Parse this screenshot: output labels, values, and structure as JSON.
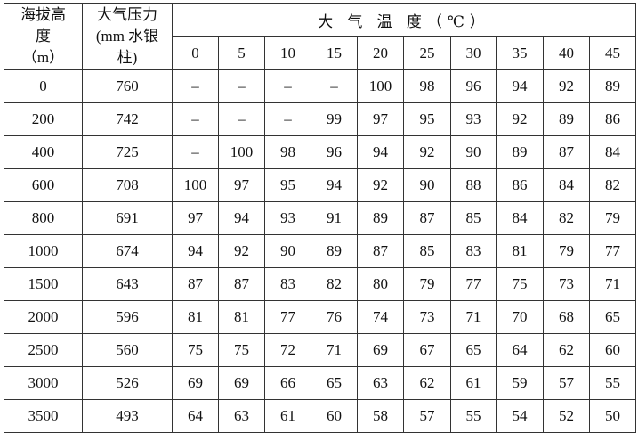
{
  "table": {
    "header": {
      "altitude": [
        "海拔高",
        "度",
        "（m）"
      ],
      "pressure": [
        "大气压力",
        "(mm 水银",
        "柱)"
      ],
      "temperature_title": "大 气 温 度（℃）",
      "temperatures": [
        "0",
        "5",
        "10",
        "15",
        "20",
        "25",
        "30",
        "35",
        "40",
        "45"
      ]
    },
    "rows": [
      {
        "altitude": "0",
        "pressure": "760",
        "values": [
          "–",
          "–",
          "–",
          "–",
          "100",
          "98",
          "96",
          "94",
          "92",
          "89"
        ]
      },
      {
        "altitude": "200",
        "pressure": "742",
        "values": [
          "–",
          "–",
          "–",
          "99",
          "97",
          "95",
          "93",
          "92",
          "89",
          "86"
        ]
      },
      {
        "altitude": "400",
        "pressure": "725",
        "values": [
          "–",
          "100",
          "98",
          "96",
          "94",
          "92",
          "90",
          "89",
          "87",
          "84"
        ]
      },
      {
        "altitude": "600",
        "pressure": "708",
        "values": [
          "100",
          "97",
          "95",
          "94",
          "92",
          "90",
          "88",
          "86",
          "84",
          "82"
        ]
      },
      {
        "altitude": "800",
        "pressure": "691",
        "values": [
          "97",
          "94",
          "93",
          "91",
          "89",
          "87",
          "85",
          "84",
          "82",
          "79"
        ]
      },
      {
        "altitude": "1000",
        "pressure": "674",
        "values": [
          "94",
          "92",
          "90",
          "89",
          "87",
          "85",
          "83",
          "81",
          "79",
          "77"
        ]
      },
      {
        "altitude": "1500",
        "pressure": "643",
        "values": [
          "87",
          "87",
          "83",
          "82",
          "80",
          "79",
          "77",
          "75",
          "73",
          "71"
        ]
      },
      {
        "altitude": "2000",
        "pressure": "596",
        "values": [
          "81",
          "81",
          "77",
          "76",
          "74",
          "73",
          "71",
          "70",
          "68",
          "65"
        ]
      },
      {
        "altitude": "2500",
        "pressure": "560",
        "values": [
          "75",
          "75",
          "72",
          "71",
          "69",
          "67",
          "65",
          "64",
          "62",
          "60"
        ]
      },
      {
        "altitude": "3000",
        "pressure": "526",
        "values": [
          "69",
          "69",
          "66",
          "65",
          "63",
          "62",
          "61",
          "59",
          "57",
          "55"
        ]
      },
      {
        "altitude": "3500",
        "pressure": "493",
        "values": [
          "64",
          "63",
          "61",
          "60",
          "58",
          "57",
          "55",
          "54",
          "52",
          "50"
        ]
      }
    ]
  }
}
